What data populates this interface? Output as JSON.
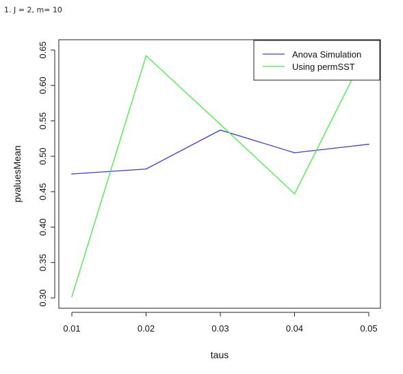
{
  "caption": "1. J = 2, m= 10",
  "chart_data": {
    "type": "line",
    "xlabel": "taus",
    "ylabel": "pvaluesMean",
    "x": [
      0.01,
      0.02,
      0.03,
      0.04,
      0.05
    ],
    "x_tick_labels": [
      "0.01",
      "0.02",
      "0.03",
      "0.04",
      "0.05"
    ],
    "y_ticks": [
      0.3,
      0.35,
      0.4,
      0.45,
      0.5,
      0.55,
      0.6,
      0.65
    ],
    "y_tick_labels": [
      "0.30",
      "0.35",
      "0.40",
      "0.45",
      "0.50",
      "0.55",
      "0.60",
      "0.65"
    ],
    "xlim": [
      0.01,
      0.05
    ],
    "ylim": [
      0.3,
      0.65
    ],
    "grid": false,
    "legend_position": "top-right",
    "series": [
      {
        "name": "Anova Simulation",
        "color": "#3a3af0",
        "values": [
          0.475,
          0.482,
          0.537,
          0.505,
          0.517
        ]
      },
      {
        "name": "Using permSST",
        "color": "#3ff03f",
        "values": [
          0.302,
          0.642,
          0.545,
          0.447,
          0.656
        ]
      }
    ]
  }
}
